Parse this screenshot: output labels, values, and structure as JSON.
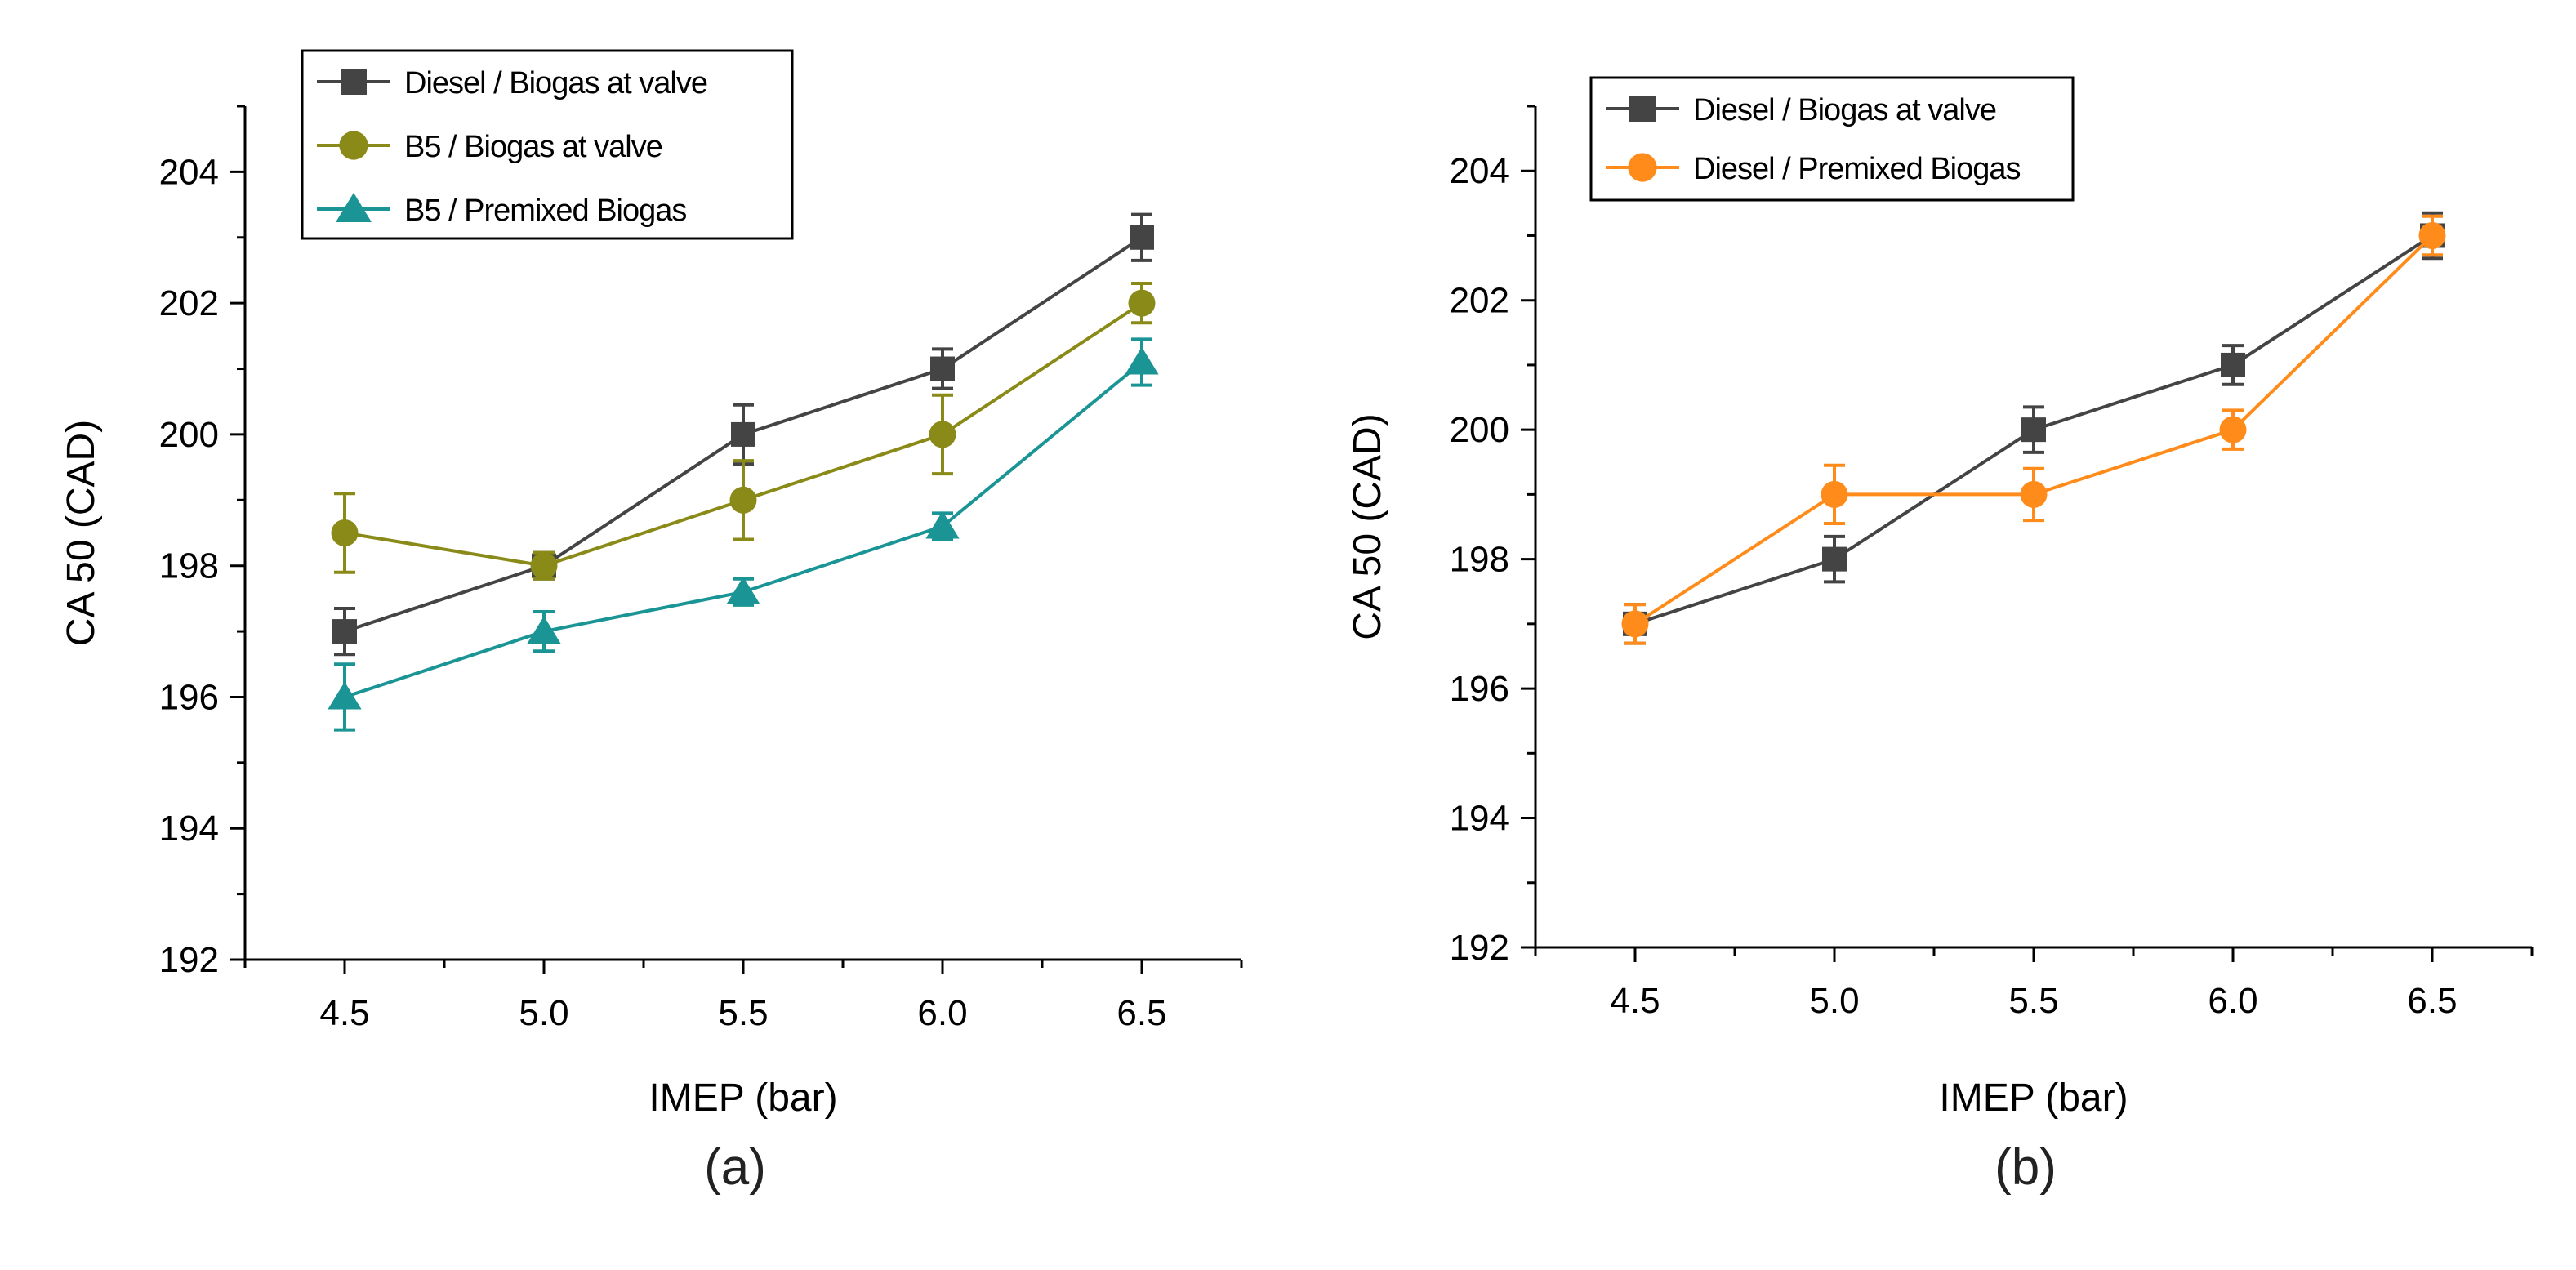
{
  "chart_data": [
    {
      "type": "line",
      "panel_label": "(a)",
      "xlabel": "IMEP (bar)",
      "ylabel": "CA 50 (CAD)",
      "xlim": [
        4.25,
        6.75
      ],
      "ylim": [
        192,
        205
      ],
      "x_ticks": [
        4.5,
        5.0,
        5.5,
        6.0,
        6.5
      ],
      "x_tick_labels": [
        "4.5",
        "5.0",
        "5.5",
        "6.0",
        "6.5"
      ],
      "y_ticks": [
        192,
        194,
        196,
        198,
        200,
        202,
        204
      ],
      "y_tick_labels": [
        "192",
        "194",
        "196",
        "198",
        "200",
        "202",
        "204"
      ],
      "legend_position": "top-left",
      "series": [
        {
          "name": "Diesel / Biogas at valve",
          "color": "#444444",
          "marker": "square",
          "x": [
            4.5,
            5.0,
            5.5,
            6.0,
            6.5
          ],
          "values": [
            197.0,
            198.0,
            200.0,
            201.0,
            203.0
          ],
          "errors": [
            0.35,
            0.2,
            0.45,
            0.3,
            0.35
          ]
        },
        {
          "name": "B5 / Biogas at valve",
          "color": "#8a8a18",
          "marker": "circle",
          "x": [
            4.5,
            5.0,
            5.5,
            6.0,
            6.5
          ],
          "values": [
            198.5,
            198.0,
            199.0,
            200.0,
            202.0
          ],
          "errors": [
            0.6,
            0.2,
            0.6,
            0.6,
            0.3
          ]
        },
        {
          "name": "B5 / Premixed Biogas",
          "color": "#1a9494",
          "marker": "triangle",
          "x": [
            4.5,
            5.0,
            5.5,
            6.0,
            6.5
          ],
          "values": [
            196.0,
            197.0,
            197.6,
            198.6,
            201.1
          ],
          "errors": [
            0.5,
            0.3,
            0.2,
            0.2,
            0.35
          ]
        }
      ]
    },
    {
      "type": "line",
      "panel_label": "(b)",
      "xlabel": "IMEP (bar)",
      "ylabel": "CA 50 (CAD)",
      "xlim": [
        4.25,
        6.75
      ],
      "ylim": [
        192,
        205
      ],
      "x_ticks": [
        4.5,
        5.0,
        5.5,
        6.0,
        6.5
      ],
      "x_tick_labels": [
        "4.5",
        "5.0",
        "5.5",
        "6.0",
        "6.5"
      ],
      "y_ticks": [
        192,
        194,
        196,
        198,
        200,
        202,
        204
      ],
      "y_tick_labels": [
        "192",
        "194",
        "196",
        "198",
        "200",
        "202",
        "204"
      ],
      "legend_position": "top-left",
      "series": [
        {
          "name": "Diesel / Biogas at valve",
          "color": "#444444",
          "marker": "square",
          "x": [
            4.5,
            5.0,
            5.5,
            6.0,
            6.5
          ],
          "values": [
            197.0,
            198.0,
            200.0,
            201.0,
            203.0
          ],
          "errors": [
            0.3,
            0.35,
            0.35,
            0.3,
            0.35
          ]
        },
        {
          "name": "Diesel / Premixed Biogas",
          "color": "#ff8c1a",
          "marker": "circle",
          "x": [
            4.5,
            5.0,
            5.5,
            6.0,
            6.5
          ],
          "values": [
            197.0,
            199.0,
            199.0,
            200.0,
            203.0
          ],
          "errors": [
            0.3,
            0.45,
            0.4,
            0.3,
            0.3
          ]
        }
      ]
    }
  ]
}
